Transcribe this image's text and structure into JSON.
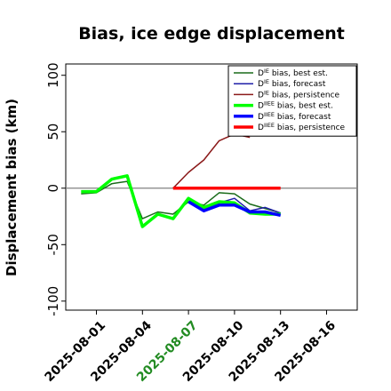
{
  "chart_data": {
    "type": "line",
    "title": "Bias, ice edge displacement",
    "ylabel": "Displacement bias (km)",
    "xlabel": "",
    "ylim": [
      -108,
      110
    ],
    "xlim": [
      "2025-07-30",
      "2025-08-18"
    ],
    "yticks": [
      -100,
      -50,
      0,
      50,
      100
    ],
    "xticks": [
      "2025-08-01",
      "2025-08-04",
      "2025-08-07",
      "2025-08-10",
      "2025-08-13",
      "2025-08-16"
    ],
    "highlight_xtick": "2025-08-07",
    "highlight_color": "#228B22",
    "zero_line": true,
    "grid": false,
    "legend_position": "top-right",
    "series": [
      {
        "name": "D^IE bias, best est.",
        "label_base": "D",
        "label_sup": "IE",
        "label_rest": " bias, best est.",
        "color": "#1a6b1a",
        "width": 1.5,
        "x": [
          "2025-07-31",
          "2025-08-01",
          "2025-08-02",
          "2025-08-03",
          "2025-08-04",
          "2025-08-05",
          "2025-08-06",
          "2025-08-07",
          "2025-08-08",
          "2025-08-09",
          "2025-08-10",
          "2025-08-11",
          "2025-08-12",
          "2025-08-13"
        ],
        "y": [
          -5,
          -4,
          4,
          6,
          -27,
          -21,
          -23,
          -12,
          -15,
          -4,
          -5,
          -14,
          -18,
          -22
        ]
      },
      {
        "name": "D^IE bias, forecast",
        "label_base": "D",
        "label_sup": "IE",
        "label_rest": " bias, forecast",
        "color": "#1f1fa8",
        "width": 1.5,
        "x": [
          "2025-08-07",
          "2025-08-08",
          "2025-08-09",
          "2025-08-10",
          "2025-08-11",
          "2025-08-12",
          "2025-08-13"
        ],
        "y": [
          -10,
          -18,
          -13,
          -9,
          -20,
          -17,
          -22
        ]
      },
      {
        "name": "D^IE bias, persistence",
        "label_base": "D",
        "label_sup": "IE",
        "label_rest": " bias, persistence",
        "color": "#8b1a1a",
        "width": 1.5,
        "x": [
          "2025-08-06",
          "2025-08-07",
          "2025-08-08",
          "2025-08-09",
          "2025-08-10",
          "2025-08-11"
        ],
        "y": [
          0,
          14,
          25,
          42,
          48,
          45
        ]
      },
      {
        "name": "D^IIEE bias, best est.",
        "label_base": "D",
        "label_sup": "IIEE",
        "label_rest": " bias, best est.",
        "color": "#00ff00",
        "width": 3.5,
        "x": [
          "2025-07-31",
          "2025-08-01",
          "2025-08-02",
          "2025-08-03",
          "2025-08-04",
          "2025-08-05",
          "2025-08-06",
          "2025-08-07",
          "2025-08-08",
          "2025-08-09",
          "2025-08-10",
          "2025-08-11",
          "2025-08-12",
          "2025-08-13"
        ],
        "y": [
          -3,
          -3,
          8,
          11,
          -34,
          -23,
          -27,
          -9,
          -17,
          -12,
          -13,
          -22,
          -23,
          -23
        ]
      },
      {
        "name": "D^IIEE bias, forecast",
        "label_base": "D",
        "label_sup": "IIEE",
        "label_rest": " bias, forecast",
        "color": "#0000ff",
        "width": 3.5,
        "x": [
          "2025-08-07",
          "2025-08-08",
          "2025-08-09",
          "2025-08-10",
          "2025-08-11",
          "2025-08-12",
          "2025-08-13"
        ],
        "y": [
          -12,
          -20,
          -15,
          -15,
          -21,
          -21,
          -24
        ]
      },
      {
        "name": "D^IIEE bias, persistence",
        "label_base": "D",
        "label_sup": "IIEE",
        "label_rest": " bias, persistence",
        "color": "#ff0000",
        "width": 3.5,
        "x": [
          "2025-08-06",
          "2025-08-07",
          "2025-08-08",
          "2025-08-09",
          "2025-08-10",
          "2025-08-11",
          "2025-08-12",
          "2025-08-13"
        ],
        "y": [
          0,
          0,
          0,
          0,
          0,
          0,
          0,
          0
        ]
      }
    ]
  }
}
